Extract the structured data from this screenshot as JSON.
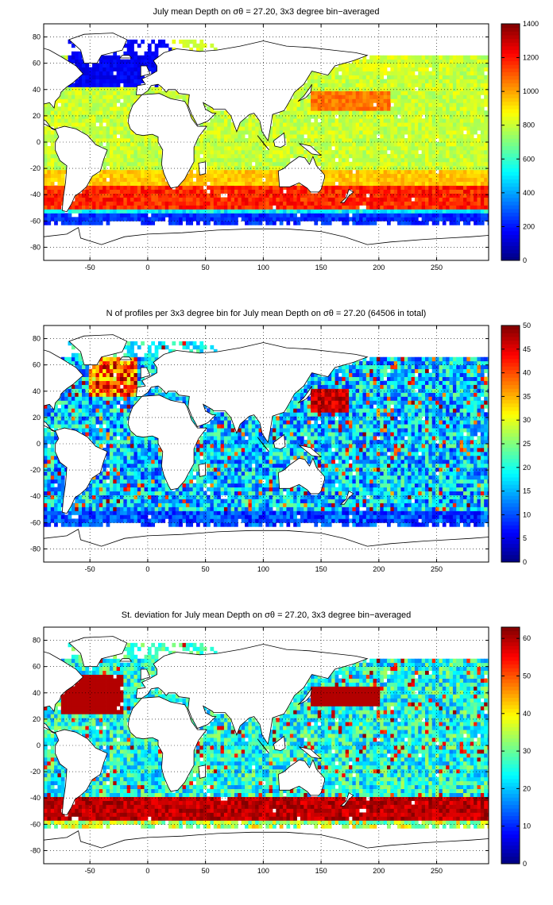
{
  "chart_data": [
    {
      "type": "heatmap",
      "title": "July mean Depth on σθ = 27.20, 3x3 degree bin−averaged",
      "x_ticks": [
        -50,
        0,
        50,
        100,
        150,
        200,
        250
      ],
      "y_ticks": [
        -80,
        -60,
        -40,
        -20,
        0,
        20,
        40,
        60,
        80
      ],
      "xlim": [
        -90,
        295
      ],
      "ylim": [
        -90,
        90
      ],
      "grid": "dotted",
      "colormap": "jet",
      "colorbar_range": [
        0,
        1400
      ],
      "colorbar_ticks": [
        0,
        200,
        400,
        600,
        800,
        1000,
        1200,
        1400
      ],
      "field": "depth",
      "description_values": {
        "subpolar_north": 150,
        "subtropical": 800,
        "southern_band_-40": 1150,
        "southern_edge_-58": 200
      }
    },
    {
      "type": "heatmap",
      "title": "N of profiles per 3x3 degree bin for July mean Depth on σθ = 27.20 (64506 in total)",
      "x_ticks": [
        -50,
        0,
        50,
        100,
        150,
        200,
        250
      ],
      "y_ticks": [
        -80,
        -60,
        -40,
        -20,
        0,
        20,
        40,
        60,
        80
      ],
      "xlim": [
        -90,
        295
      ],
      "ylim": [
        -90,
        90
      ],
      "grid": "dotted",
      "colormap": "jet",
      "colorbar_range": [
        0,
        50
      ],
      "colorbar_ticks": [
        0,
        5,
        10,
        15,
        20,
        25,
        30,
        35,
        40,
        45,
        50
      ],
      "field": "count",
      "total_profiles": 64506
    },
    {
      "type": "heatmap",
      "title": "St. deviation for July mean Depth on σθ = 27.20, 3x3 degree bin−averaged",
      "x_ticks": [
        -50,
        0,
        50,
        100,
        150,
        200,
        250
      ],
      "y_ticks": [
        -80,
        -60,
        -40,
        -20,
        0,
        20,
        40,
        60,
        80
      ],
      "xlim": [
        -90,
        295
      ],
      "ylim": [
        -90,
        90
      ],
      "grid": "dotted",
      "colormap": "jet",
      "colorbar_range": [
        0,
        63
      ],
      "colorbar_ticks": [
        0,
        10,
        20,
        30,
        40,
        50,
        60
      ],
      "field": "std"
    }
  ]
}
